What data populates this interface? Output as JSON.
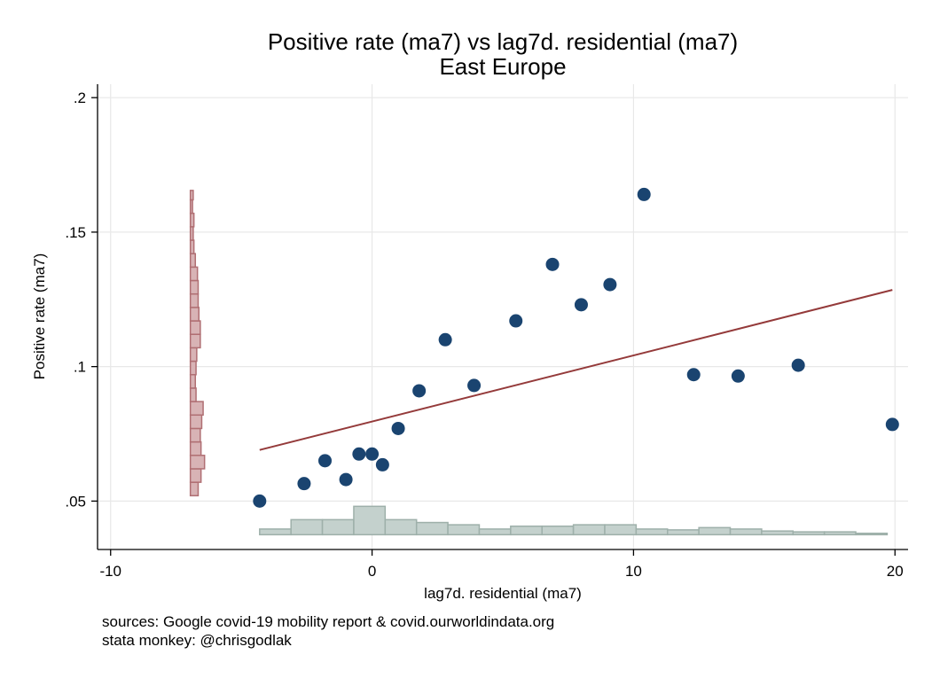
{
  "chart_data": {
    "type": "scatter",
    "title": "Positive rate (ma7) vs lag7d. residential (ma7)",
    "subtitle": "East Europe",
    "xlabel": "lag7d. residential (ma7)",
    "ylabel": "Positive rate (ma7)",
    "xlim": [
      -10.5,
      20.5
    ],
    "ylim": [
      0.032,
      0.205
    ],
    "x_ticks": [
      -10,
      0,
      10,
      20
    ],
    "x_tick_labels": [
      "-10",
      "0",
      "10",
      "20"
    ],
    "y_ticks": [
      0.05,
      0.1,
      0.15,
      0.2
    ],
    "y_tick_labels": [
      ".05",
      ".1",
      ".15",
      ".2"
    ],
    "grid": true,
    "points": [
      {
        "x": -4.3,
        "y": 0.05
      },
      {
        "x": -2.6,
        "y": 0.0565
      },
      {
        "x": -1.8,
        "y": 0.065
      },
      {
        "x": -1.0,
        "y": 0.058
      },
      {
        "x": -0.5,
        "y": 0.0675
      },
      {
        "x": 0.0,
        "y": 0.0675
      },
      {
        "x": 0.4,
        "y": 0.0635
      },
      {
        "x": 1.0,
        "y": 0.077
      },
      {
        "x": 1.8,
        "y": 0.091
      },
      {
        "x": 2.8,
        "y": 0.11
      },
      {
        "x": 3.9,
        "y": 0.093
      },
      {
        "x": 5.5,
        "y": 0.117
      },
      {
        "x": 6.9,
        "y": 0.138
      },
      {
        "x": 8.0,
        "y": 0.123
      },
      {
        "x": 9.1,
        "y": 0.1305
      },
      {
        "x": 10.4,
        "y": 0.164
      },
      {
        "x": 12.3,
        "y": 0.097
      },
      {
        "x": 14.0,
        "y": 0.0965
      },
      {
        "x": 16.3,
        "y": 0.1005
      },
      {
        "x": 19.9,
        "y": 0.0785
      }
    ],
    "fit_line": {
      "x": [
        -4.3,
        19.9
      ],
      "y": [
        0.069,
        0.1285
      ]
    },
    "x_histogram": {
      "bins": [
        [
          -4.3,
          -3.1
        ],
        [
          -3.1,
          -1.9
        ],
        [
          -1.9,
          -0.7
        ],
        [
          -0.7,
          0.5
        ],
        [
          0.5,
          1.7
        ],
        [
          1.7,
          2.9
        ],
        [
          2.9,
          4.1
        ],
        [
          4.1,
          5.3
        ],
        [
          5.3,
          6.5
        ],
        [
          6.5,
          7.7
        ],
        [
          7.7,
          8.9
        ],
        [
          8.9,
          10.1
        ],
        [
          10.1,
          11.3
        ],
        [
          11.3,
          12.5
        ],
        [
          12.5,
          13.7
        ],
        [
          13.7,
          14.9
        ],
        [
          14.9,
          16.1
        ],
        [
          16.1,
          17.3
        ],
        [
          17.3,
          18.5
        ],
        [
          18.5,
          19.7
        ]
      ],
      "heights": [
        0.2,
        0.53,
        0.53,
        1.0,
        0.53,
        0.43,
        0.35,
        0.2,
        0.3,
        0.3,
        0.35,
        0.35,
        0.2,
        0.17,
        0.25,
        0.2,
        0.13,
        0.1,
        0.1,
        0.05
      ]
    },
    "y_histogram": {
      "bins": [
        [
          0.052,
          0.057
        ],
        [
          0.057,
          0.062
        ],
        [
          0.062,
          0.067
        ],
        [
          0.067,
          0.072
        ],
        [
          0.072,
          0.077
        ],
        [
          0.077,
          0.082
        ],
        [
          0.082,
          0.087
        ],
        [
          0.087,
          0.092
        ],
        [
          0.092,
          0.097
        ],
        [
          0.097,
          0.102
        ],
        [
          0.102,
          0.107
        ],
        [
          0.107,
          0.112
        ],
        [
          0.112,
          0.117
        ],
        [
          0.117,
          0.122
        ],
        [
          0.122,
          0.127
        ],
        [
          0.127,
          0.132
        ],
        [
          0.132,
          0.137
        ],
        [
          0.137,
          0.142
        ],
        [
          0.142,
          0.147
        ],
        [
          0.147,
          0.152
        ],
        [
          0.152,
          0.157
        ],
        [
          0.157,
          0.162
        ],
        [
          0.162,
          0.1655
        ]
      ],
      "heights": [
        0.55,
        0.75,
        1.0,
        0.75,
        0.7,
        0.8,
        0.9,
        0.4,
        0.35,
        0.4,
        0.45,
        0.7,
        0.7,
        0.6,
        0.55,
        0.55,
        0.5,
        0.35,
        0.25,
        0.2,
        0.25,
        0.15,
        0.2
      ]
    },
    "colors": {
      "points": "#1a4470",
      "fit_line": "#943a3a",
      "x_hist_fill": "#c4d1cd",
      "x_hist_stroke": "#9eb0aa",
      "y_hist_fill": "#d8b3b5",
      "y_hist_stroke": "#b06f73",
      "grid": "#e8e8e8"
    }
  },
  "notes": {
    "sources": "sources: Google covid-19 mobility report & covid.ourworldindata.org",
    "author": "stata monkey: @chrisgodlak"
  }
}
